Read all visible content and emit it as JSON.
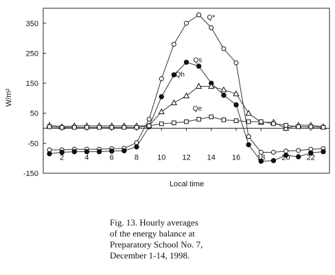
{
  "chart_data": {
    "type": "line",
    "xlabel": "Local time",
    "ylabel": "W/m²",
    "xlim": [
      0.5,
      23.5
    ],
    "ylim": [
      -150,
      400
    ],
    "x_ticks": [
      2,
      4,
      6,
      8,
      10,
      12,
      14,
      16,
      18,
      20,
      22
    ],
    "y_ticks": [
      350,
      250,
      150,
      50,
      -50,
      -150
    ],
    "x": [
      1,
      2,
      3,
      4,
      5,
      6,
      7,
      8,
      9,
      10,
      11,
      12,
      13,
      14,
      15,
      16,
      17,
      18,
      19,
      20,
      21,
      22,
      23
    ],
    "series": [
      {
        "name": "Q*",
        "marker": "open-circle",
        "values": [
          -72,
          -72,
          -70,
          -70,
          -70,
          -68,
          -67,
          -48,
          30,
          165,
          280,
          350,
          378,
          335,
          265,
          218,
          -28,
          -80,
          -80,
          -76,
          -74,
          -70,
          -68
        ]
      },
      {
        "name": "Qs",
        "marker": "filled-circle",
        "values": [
          -85,
          -80,
          -78,
          -78,
          -78,
          -76,
          -75,
          -62,
          5,
          105,
          178,
          220,
          207,
          150,
          110,
          78,
          -55,
          -110,
          -108,
          -90,
          -95,
          -82,
          -78
        ]
      },
      {
        "name": "Qh",
        "marker": "open-triangle",
        "values": [
          10,
          5,
          8,
          8,
          8,
          8,
          8,
          8,
          8,
          55,
          85,
          108,
          140,
          140,
          128,
          115,
          50,
          20,
          20,
          0,
          10,
          10,
          5
        ]
      },
      {
        "name": "Qe",
        "marker": "open-square",
        "values": [
          5,
          3,
          3,
          3,
          3,
          3,
          3,
          3,
          8,
          15,
          18,
          22,
          30,
          38,
          28,
          25,
          22,
          22,
          15,
          10,
          5,
          5,
          3
        ]
      }
    ]
  },
  "caption": {
    "line1": "Fig. 13. Hourly averages",
    "line2": "of the energy balance at",
    "line3": "Preparatory School No. 7,",
    "line4": "December 1-14, 1998."
  }
}
